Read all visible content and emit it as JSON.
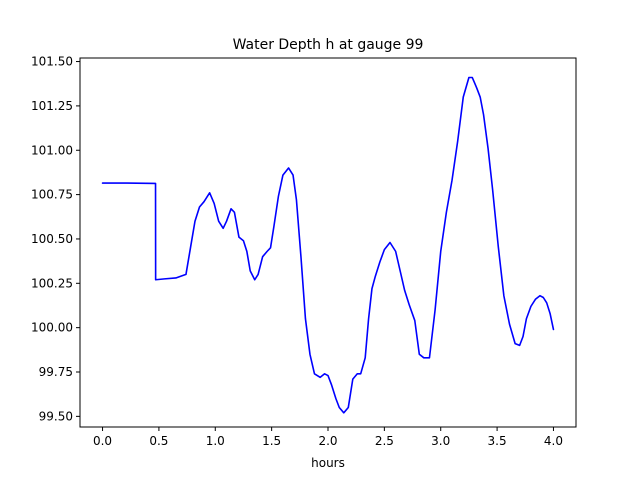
{
  "chart_data": {
    "type": "line",
    "title": "Water Depth h at gauge 99",
    "xlabel": "hours",
    "ylabel": "",
    "xlim": [
      -0.2,
      4.2
    ],
    "ylim": [
      99.44,
      101.52
    ],
    "grid": false,
    "legend": "none",
    "x_ticks": [
      0.0,
      0.5,
      1.0,
      1.5,
      2.0,
      2.5,
      3.0,
      3.5,
      4.0
    ],
    "x_tick_labels": [
      "0.0",
      "0.5",
      "1.0",
      "1.5",
      "2.0",
      "2.5",
      "3.0",
      "3.5",
      "4.0"
    ],
    "y_ticks": [
      99.5,
      99.75,
      100.0,
      100.25,
      100.5,
      100.75,
      101.0,
      101.25,
      101.5
    ],
    "y_tick_labels": [
      "99.50",
      "99.75",
      "100.00",
      "100.25",
      "100.50",
      "100.75",
      "101.00",
      "101.25",
      "101.50"
    ],
    "series": [
      {
        "color": "#0000ff",
        "x": [
          0.0,
          0.2,
          0.47,
          0.471,
          0.55,
          0.65,
          0.74,
          0.78,
          0.82,
          0.86,
          0.9,
          0.95,
          0.99,
          1.03,
          1.07,
          1.1,
          1.14,
          1.17,
          1.21,
          1.25,
          1.28,
          1.31,
          1.35,
          1.38,
          1.42,
          1.46,
          1.49,
          1.52,
          1.56,
          1.6,
          1.65,
          1.69,
          1.72,
          1.76,
          1.8,
          1.84,
          1.88,
          1.93,
          1.97,
          2.0,
          2.03,
          2.07,
          2.1,
          2.14,
          2.18,
          2.22,
          2.26,
          2.29,
          2.33,
          2.36,
          2.39,
          2.42,
          2.46,
          2.5,
          2.55,
          2.6,
          2.64,
          2.68,
          2.72,
          2.77,
          2.81,
          2.85,
          2.9,
          2.95,
          3.0,
          3.05,
          3.1,
          3.15,
          3.2,
          3.25,
          3.28,
          3.3,
          3.32,
          3.35,
          3.38,
          3.42,
          3.46,
          3.51,
          3.56,
          3.61,
          3.66,
          3.7,
          3.73,
          3.76,
          3.8,
          3.84,
          3.88,
          3.91,
          3.94,
          3.97,
          4.0
        ],
        "y": [
          100.815,
          100.815,
          100.813,
          100.27,
          100.275,
          100.28,
          100.3,
          100.45,
          100.6,
          100.68,
          100.71,
          100.76,
          100.7,
          100.6,
          100.56,
          100.6,
          100.67,
          100.65,
          100.51,
          100.49,
          100.43,
          100.32,
          100.27,
          100.3,
          100.4,
          100.43,
          100.45,
          100.57,
          100.74,
          100.86,
          100.9,
          100.86,
          100.72,
          100.4,
          100.05,
          99.85,
          99.74,
          99.72,
          99.74,
          99.73,
          99.68,
          99.6,
          99.55,
          99.52,
          99.55,
          99.71,
          99.74,
          99.74,
          99.83,
          100.05,
          100.22,
          100.29,
          100.37,
          100.44,
          100.48,
          100.43,
          100.32,
          100.21,
          100.13,
          100.04,
          99.85,
          99.83,
          99.83,
          100.1,
          100.43,
          100.65,
          100.83,
          101.05,
          101.3,
          101.41,
          101.41,
          101.38,
          101.35,
          101.3,
          101.2,
          101.01,
          100.78,
          100.46,
          100.18,
          100.02,
          99.91,
          99.9,
          99.95,
          100.05,
          100.12,
          100.16,
          100.18,
          100.17,
          100.14,
          100.08,
          99.99
        ]
      }
    ]
  }
}
